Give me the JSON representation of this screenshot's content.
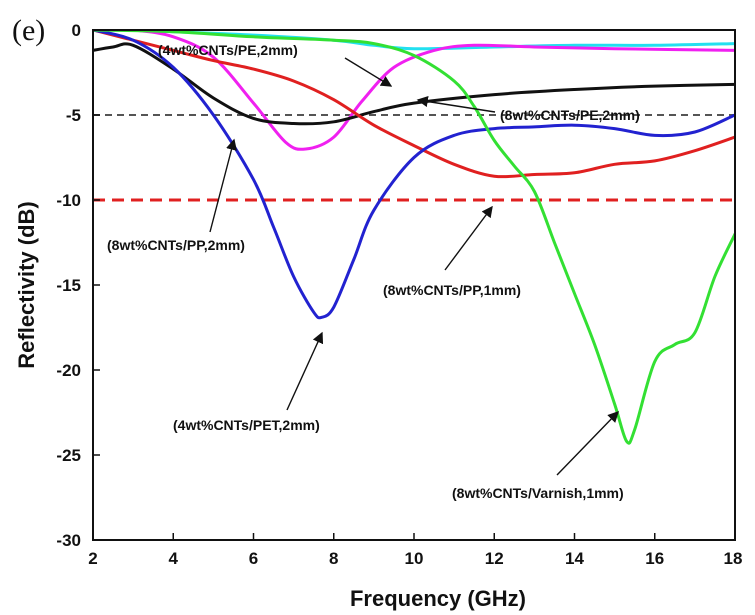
{
  "chart_data": {
    "type": "line",
    "panel_label": "(e)",
    "xlabel": "Frequency (GHz)",
    "ylabel": "Reflectivity (dB)",
    "xlim": [
      2,
      18
    ],
    "ylim": [
      -30,
      0
    ],
    "xticks": [
      "2",
      "4",
      "6",
      "8",
      "10",
      "12",
      "14",
      "16",
      "18"
    ],
    "yticks": [
      "0",
      "-5",
      "-10",
      "-15",
      "-20",
      "-25",
      "-30"
    ],
    "reference_lines": [
      {
        "y": -5,
        "color": "#555555",
        "style": "dashed"
      },
      {
        "y": -10,
        "color": "#e02020",
        "style": "dashed"
      }
    ],
    "series": [
      {
        "label": "(4wt%CNTs/PE,2mm)",
        "color": "#22e0f0",
        "x": [
          2,
          4,
          6,
          8,
          9,
          10,
          12,
          14,
          16,
          18
        ],
        "y": [
          0.1,
          -0.1,
          -0.3,
          -0.6,
          -0.9,
          -1.1,
          -1.0,
          -0.9,
          -0.9,
          -0.8
        ]
      },
      {
        "label": "(8wt%CNTs/PE,2mm)",
        "color": "#f020f0",
        "x": [
          2,
          3,
          4,
          5,
          6,
          6.8,
          7.3,
          8,
          8.7,
          9.5,
          10.5,
          11.5,
          13,
          15,
          18
        ],
        "y": [
          0.1,
          0.0,
          -0.4,
          -1.6,
          -4.3,
          -6.6,
          -7.0,
          -6.3,
          -4.2,
          -2.2,
          -1.2,
          -0.9,
          -1.0,
          -1.1,
          -1.2
        ]
      },
      {
        "label": "(8wt%CNTs/PP,2mm)",
        "color": "#111111",
        "x": [
          2,
          2.5,
          3,
          4,
          5,
          6,
          7,
          8,
          9,
          10,
          12,
          14,
          16,
          18
        ],
        "y": [
          -1.2,
          -1.0,
          -0.9,
          -2.3,
          -4.0,
          -5.2,
          -5.5,
          -5.4,
          -4.8,
          -4.3,
          -3.8,
          -3.5,
          -3.3,
          -3.2
        ]
      },
      {
        "label": "(8wt%CNTs/PP,1mm)",
        "color": "#e02020",
        "x": [
          2,
          4,
          5,
          6,
          7,
          8,
          9,
          10,
          11,
          12,
          13,
          14,
          15,
          16,
          17,
          18
        ],
        "y": [
          0.0,
          -1.2,
          -1.8,
          -2.3,
          -3.0,
          -4.1,
          -5.6,
          -6.8,
          -7.9,
          -8.6,
          -8.5,
          -8.4,
          -7.9,
          -7.7,
          -7.1,
          -6.3
        ]
      },
      {
        "label": "(4wt%CNTs/PET,2mm)",
        "color": "#2222d0",
        "x": [
          2,
          3,
          4,
          5,
          6,
          6.5,
          7,
          7.5,
          7.7,
          8,
          8.5,
          9,
          10,
          11,
          12,
          13,
          14,
          15,
          16,
          17,
          18
        ],
        "y": [
          0.0,
          -0.6,
          -2.2,
          -5.0,
          -8.8,
          -11.6,
          -14.5,
          -16.6,
          -16.9,
          -16.3,
          -13.5,
          -10.6,
          -7.5,
          -6.2,
          -5.8,
          -5.7,
          -5.6,
          -5.8,
          -6.2,
          -6.0,
          -5.0
        ]
      },
      {
        "label": "(8wt%CNTs/Varnish,1mm)",
        "color": "#33e033",
        "x": [
          2,
          4,
          6,
          8,
          9,
          10,
          11,
          11.5,
          12,
          12.5,
          13,
          13.5,
          14,
          14.5,
          15,
          15.3,
          15.5,
          16,
          16.5,
          17,
          17.5,
          18
        ],
        "y": [
          0.0,
          -0.1,
          -0.4,
          -0.6,
          -0.8,
          -1.5,
          -3.0,
          -4.5,
          -6.5,
          -8.0,
          -9.5,
          -12.5,
          -15.5,
          -18.5,
          -22.0,
          -24.2,
          -23.5,
          -19.5,
          -18.5,
          -17.8,
          -14.5,
          -12.0
        ]
      }
    ],
    "annotations": [
      {
        "text": "(4wt%CNTs/PE,2mm)",
        "series": "(4wt%CNTs/PE,2mm)"
      },
      {
        "text": "(8wt%CNTs/PE,2mm)",
        "series": "(8wt%CNTs/PE,2mm)"
      },
      {
        "text": "(8wt%CNTs/PP,2mm)",
        "series": "(8wt%CNTs/PP,2mm)"
      },
      {
        "text": "(8wt%CNTs/PP,1mm)",
        "series": "(8wt%CNTs/PP,1mm)"
      },
      {
        "text": "(4wt%CNTs/PET,2mm)",
        "series": "(4wt%CNTs/PET,2mm)"
      },
      {
        "text": "(8wt%CNTs/Varnish,1mm)",
        "series": "(8wt%CNTs/Varnish,1mm)"
      }
    ]
  }
}
